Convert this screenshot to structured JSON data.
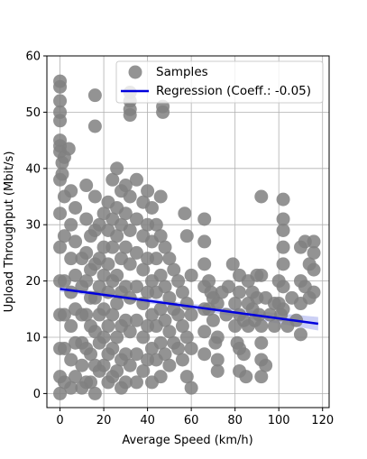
{
  "chart_data": {
    "type": "scatter",
    "title": "",
    "xlabel": "Average Speed (km/h)",
    "ylabel": "Upload Throughput (Mbit/s)",
    "xlim": [
      -6,
      123
    ],
    "ylim": [
      -2.5,
      60
    ],
    "xticks": [
      0,
      20,
      40,
      60,
      80,
      100,
      120
    ],
    "yticks": [
      0,
      10,
      20,
      30,
      40,
      50,
      60
    ],
    "grid": true,
    "legend_position": "top-right",
    "colors": {
      "samples": "#808080",
      "regression": "#0000dd",
      "confidence_band": "#aab0ee"
    },
    "series": [
      {
        "name": "Samples",
        "kind": "scatter",
        "points": [
          [
            0,
            55.5
          ],
          [
            0,
            54.5
          ],
          [
            0,
            52
          ],
          [
            0,
            50
          ],
          [
            0,
            48.5
          ],
          [
            0,
            45
          ],
          [
            0,
            44
          ],
          [
            0,
            43
          ],
          [
            1,
            41
          ],
          [
            1,
            39
          ],
          [
            4,
            43.5
          ],
          [
            2,
            42
          ],
          [
            16,
            53
          ],
          [
            16,
            47.5
          ],
          [
            32,
            53.5
          ],
          [
            32,
            52
          ],
          [
            32,
            50.5
          ],
          [
            32,
            49.5
          ],
          [
            47,
            51
          ],
          [
            47,
            50
          ],
          [
            10,
            24
          ],
          [
            10,
            19
          ],
          [
            10,
            14
          ],
          [
            10,
            9
          ],
          [
            10,
            5
          ],
          [
            10,
            1
          ],
          [
            14,
            28
          ],
          [
            14,
            22
          ],
          [
            14,
            17
          ],
          [
            14,
            12
          ],
          [
            14,
            7
          ],
          [
            14,
            2
          ],
          [
            18,
            30
          ],
          [
            18,
            24
          ],
          [
            18,
            19
          ],
          [
            18,
            14
          ],
          [
            18,
            9
          ],
          [
            18,
            4
          ],
          [
            20,
            32
          ],
          [
            20,
            26
          ],
          [
            20,
            21
          ],
          [
            20,
            15
          ],
          [
            20,
            10
          ],
          [
            20,
            5
          ],
          [
            22,
            34
          ],
          [
            22,
            29
          ],
          [
            22,
            23
          ],
          [
            22,
            18
          ],
          [
            22,
            12
          ],
          [
            22,
            7
          ],
          [
            22,
            2
          ],
          [
            24,
            38
          ],
          [
            24,
            31
          ],
          [
            24,
            26
          ],
          [
            24,
            20
          ],
          [
            24,
            14
          ],
          [
            24,
            8
          ],
          [
            24,
            3
          ],
          [
            26,
            40
          ],
          [
            26,
            33
          ],
          [
            26,
            28
          ],
          [
            26,
            21
          ],
          [
            26,
            16
          ],
          [
            26,
            10
          ],
          [
            26,
            4
          ],
          [
            28,
            36
          ],
          [
            28,
            30
          ],
          [
            28,
            24
          ],
          [
            28,
            18
          ],
          [
            28,
            12
          ],
          [
            28,
            6
          ],
          [
            28,
            1
          ],
          [
            30,
            37
          ],
          [
            30,
            32
          ],
          [
            30,
            26
          ],
          [
            30,
            19
          ],
          [
            30,
            13
          ],
          [
            30,
            7
          ],
          [
            30,
            2
          ],
          [
            32,
            35
          ],
          [
            32,
            29
          ],
          [
            32,
            23
          ],
          [
            32,
            17
          ],
          [
            32,
            11
          ],
          [
            32,
            5
          ],
          [
            35,
            38
          ],
          [
            35,
            31
          ],
          [
            35,
            25
          ],
          [
            35,
            19
          ],
          [
            35,
            13
          ],
          [
            35,
            7
          ],
          [
            35,
            2
          ],
          [
            38,
            34
          ],
          [
            38,
            28
          ],
          [
            38,
            22
          ],
          [
            38,
            16
          ],
          [
            38,
            10
          ],
          [
            38,
            4
          ],
          [
            40,
            36
          ],
          [
            40,
            30
          ],
          [
            40,
            24
          ],
          [
            40,
            18
          ],
          [
            40,
            12
          ],
          [
            40,
            6
          ],
          [
            42,
            33
          ],
          [
            42,
            27
          ],
          [
            42,
            20
          ],
          [
            42,
            14
          ],
          [
            42,
            8
          ],
          [
            42,
            2
          ],
          [
            44,
            30
          ],
          [
            44,
            24
          ],
          [
            44,
            18
          ],
          [
            44,
            12
          ],
          [
            44,
            6
          ],
          [
            46,
            35
          ],
          [
            46,
            28
          ],
          [
            46,
            21
          ],
          [
            46,
            15
          ],
          [
            46,
            9
          ],
          [
            46,
            3
          ],
          [
            48,
            26
          ],
          [
            48,
            19
          ],
          [
            48,
            13
          ],
          [
            48,
            7
          ],
          [
            50,
            24
          ],
          [
            50,
            17
          ],
          [
            50,
            11
          ],
          [
            50,
            5
          ],
          [
            52,
            22
          ],
          [
            52,
            15
          ],
          [
            52,
            9
          ],
          [
            54,
            20
          ],
          [
            54,
            14
          ],
          [
            54,
            8
          ],
          [
            56,
            18
          ],
          [
            56,
            12
          ],
          [
            56,
            6
          ],
          [
            57,
            32
          ],
          [
            58,
            28
          ],
          [
            58,
            16
          ],
          [
            58,
            10
          ],
          [
            58,
            3
          ],
          [
            60,
            21
          ],
          [
            60,
            14
          ],
          [
            60,
            8
          ],
          [
            60,
            1
          ],
          [
            66,
            31
          ],
          [
            66,
            27
          ],
          [
            66,
            23
          ],
          [
            66,
            19
          ],
          [
            66,
            15
          ],
          [
            66,
            11
          ],
          [
            66,
            7
          ],
          [
            68,
            20
          ],
          [
            68,
            15
          ],
          [
            69,
            18
          ],
          [
            70,
            17
          ],
          [
            70,
            13
          ],
          [
            71,
            9
          ],
          [
            72,
            16
          ],
          [
            72,
            10
          ],
          [
            72,
            6
          ],
          [
            72,
            4
          ],
          [
            74,
            18
          ],
          [
            76,
            14
          ],
          [
            77,
            19
          ],
          [
            79,
            23
          ],
          [
            80,
            16
          ],
          [
            80,
            12
          ],
          [
            81,
            9
          ],
          [
            82,
            21
          ],
          [
            82,
            18
          ],
          [
            82,
            14
          ],
          [
            82,
            8
          ],
          [
            82,
            4
          ],
          [
            84,
            13
          ],
          [
            84,
            7
          ],
          [
            85,
            3
          ],
          [
            86,
            20
          ],
          [
            86,
            16
          ],
          [
            86,
            12
          ],
          [
            88,
            18
          ],
          [
            88,
            15
          ],
          [
            89,
            13
          ],
          [
            90,
            21
          ],
          [
            90,
            17
          ],
          [
            91,
            14
          ],
          [
            92,
            21
          ],
          [
            92,
            35
          ],
          [
            92,
            12
          ],
          [
            92,
            9
          ],
          [
            92,
            6
          ],
          [
            92,
            3
          ],
          [
            94,
            17
          ],
          [
            94,
            5
          ],
          [
            96,
            14
          ],
          [
            98,
            16
          ],
          [
            98,
            12
          ],
          [
            100,
            20
          ],
          [
            100,
            16
          ],
          [
            101,
            14
          ],
          [
            102,
            34.5
          ],
          [
            102,
            31
          ],
          [
            102,
            29
          ],
          [
            102,
            26
          ],
          [
            102,
            23
          ],
          [
            102,
            19
          ],
          [
            102,
            15
          ],
          [
            104,
            12
          ],
          [
            106,
            17
          ],
          [
            108,
            13
          ],
          [
            110,
            26
          ],
          [
            110,
            20
          ],
          [
            110,
            16
          ],
          [
            110,
            10.5
          ],
          [
            112,
            27
          ],
          [
            112,
            19
          ],
          [
            114,
            23
          ],
          [
            114,
            17
          ],
          [
            116,
            27
          ],
          [
            116,
            25
          ],
          [
            116,
            18
          ],
          [
            116,
            22
          ],
          [
            5,
            36
          ],
          [
            5,
            30
          ],
          [
            5,
            24
          ],
          [
            5,
            18
          ],
          [
            5,
            12
          ],
          [
            5,
            6
          ],
          [
            5,
            1
          ],
          [
            2,
            35
          ],
          [
            2,
            28
          ],
          [
            2,
            20
          ],
          [
            2,
            14
          ],
          [
            2,
            8
          ],
          [
            2,
            2
          ],
          [
            0,
            38
          ],
          [
            0,
            32
          ],
          [
            0,
            26
          ],
          [
            0,
            20
          ],
          [
            0,
            14
          ],
          [
            0,
            8
          ],
          [
            0,
            3
          ],
          [
            0,
            0
          ],
          [
            7,
            33
          ],
          [
            7,
            27
          ],
          [
            7,
            21
          ],
          [
            7,
            15
          ],
          [
            7,
            9
          ],
          [
            7,
            3
          ],
          [
            12,
            37
          ],
          [
            12,
            31
          ],
          [
            12,
            25
          ],
          [
            12,
            20
          ],
          [
            12,
            14
          ],
          [
            12,
            8
          ],
          [
            12,
            2
          ],
          [
            16,
            35
          ],
          [
            16,
            29
          ],
          [
            16,
            23
          ],
          [
            16,
            17
          ],
          [
            16,
            11
          ],
          [
            16,
            5
          ],
          [
            16,
            0
          ]
        ]
      },
      {
        "name": "Regression (Coeff.: -0.05)",
        "kind": "line",
        "points": [
          [
            0,
            18.6
          ],
          [
            118,
            12.4
          ]
        ]
      }
    ]
  }
}
